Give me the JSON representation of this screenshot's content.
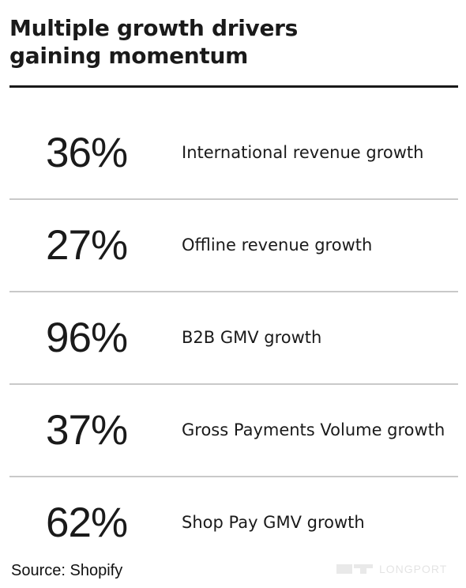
{
  "title": {
    "line1": "Multiple growth drivers",
    "line2": "gaining momentum"
  },
  "stats": [
    {
      "value": "36%",
      "label": "International revenue growth"
    },
    {
      "value": "27%",
      "label": "Offline revenue growth"
    },
    {
      "value": "96%",
      "label": "B2B GMV growth"
    },
    {
      "value": "37%",
      "label": "Gross Payments Volume growth"
    },
    {
      "value": "62%",
      "label": "Shop Pay GMV growth"
    }
  ],
  "source": "Source: Shopify",
  "watermark": {
    "text": "LONGPORT",
    "icon": "longport-logo-icon"
  }
}
